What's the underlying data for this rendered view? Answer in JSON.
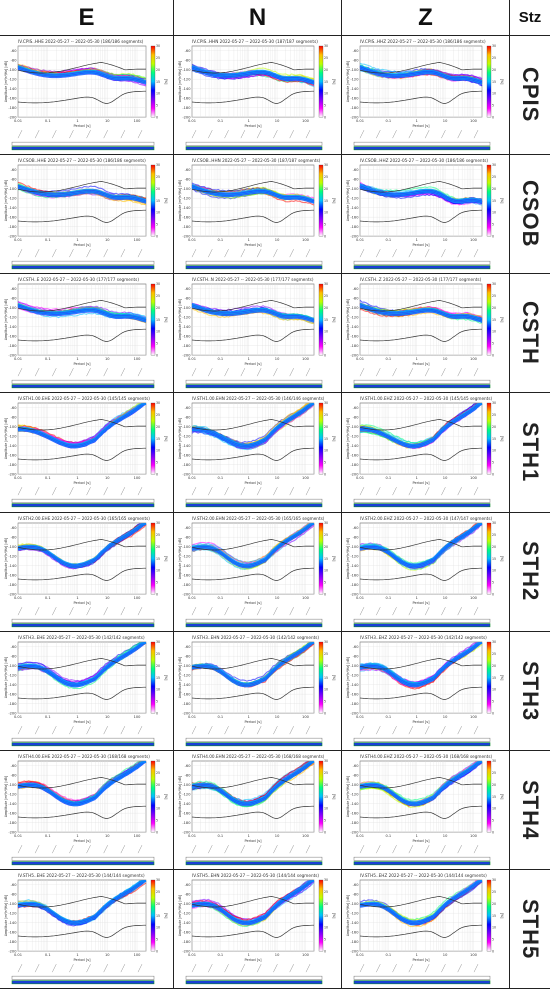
{
  "header": {
    "columns": [
      "E",
      "N",
      "Z"
    ],
    "stz_label": "Stz"
  },
  "stations": [
    "CPIS",
    "CSOB",
    "CSTH",
    "STH1",
    "STH2",
    "STH3",
    "STH4",
    "STH5"
  ],
  "panel_titles": [
    [
      "IV.CPIS..HHE 2022-05-27 -- 2022-05-30 (186/186 segments)",
      "IV.CPIS..HHN 2022-05-27 -- 2022-05-30 (187/187 segments)",
      "IV.CPIS..HHZ 2022-05-27 -- 2022-05-30 (186/186 segments)"
    ],
    [
      "IV.CSOB..HHE 2022-05-27 -- 2022-05-30 (186/186 segments)",
      "IV.CSOB..HHN 2022-05-27 -- 2022-05-30 (187/187 segments)",
      "IV.CSOB..HHZ 2022-05-27 -- 2022-05-30 (186/186 segments)"
    ],
    [
      "IV.CSTH..E 2022-05-27 -- 2022-05-30 (177/177 segments)",
      "IV.CSTH..N 2022-05-27 -- 2022-05-30 (177/177 segments)",
      "IV.CSTH..Z 2022-05-27 -- 2022-05-30 (177/177 segments)"
    ],
    [
      "IV.STH1.00.EHE 2022-05-27 -- 2022-05-30 (145/145 segments)",
      "IV.STH1.00.EHN 2022-05-27 -- 2022-05-30 (146/146 segments)",
      "IV.STH1.00.EHZ 2022-05-27 -- 2022-05-30 (145/145 segments)"
    ],
    [
      "IV.STH2.00.EHE 2022-05-27 -- 2022-05-30 (165/165 segments)",
      "IV.STH2.00.EHN 2022-05-27 -- 2022-05-30 (165/165 segments)",
      "IV.STH2.00.EHZ 2022-05-27 -- 2022-05-30 (147/147 segments)"
    ],
    [
      "IV.STH3..EHE 2022-05-27 -- 2022-05-30 (142/142 segments)",
      "IV.STH3..EHN 2022-05-27 -- 2022-05-30 (142/142 segments)",
      "IV.STH3..EHZ 2022-05-27 -- 2022-05-30 (142/142 segments)"
    ],
    [
      "IV.STH4.00.EHE 2022-05-27 -- 2022-05-30 (168/168 segments)",
      "IV.STH4.00.EHN 2022-05-27 -- 2022-05-30 (168/168 segments)",
      "IV.STH4.00.EHZ 2022-05-27 -- 2022-05-30 (168/168 segments)"
    ],
    [
      "IV.STH5..EHE 2022-05-27 -- 2022-05-30 (144/144 segments)",
      "IV.STH5..EHN 2022-05-27 -- 2022-05-30 (144/144 segments)",
      "IV.STH5..EHZ 2022-05-27 -- 2022-05-30 (144/144 segments)"
    ]
  ],
  "chart_data": {
    "type": "line",
    "description_axes": {
      "xlabel": "Period [s]",
      "ylabel": "Amplitude [m²/s⁴/Hz] [dB]",
      "x_ticks": [
        "0.01",
        "0.1",
        "1",
        "10",
        "100"
      ],
      "y_ticks": [
        "-60",
        "-80",
        "-100",
        "-120",
        "-140",
        "-160",
        "-180",
        "-200"
      ],
      "xlim": [
        0.01,
        200
      ],
      "ylim": [
        -200,
        -50
      ],
      "x_scale": "log",
      "colorbar_ticks": [
        "30",
        "25",
        "20",
        "15",
        "10",
        "5",
        "0"
      ],
      "colorbar_label": "[%]",
      "grid": true
    },
    "reference_models": [
      "NHNM",
      "NLNM"
    ],
    "colormap": [
      "#ff00ff",
      "#8000ff",
      "#0000ff",
      "#00c0ff",
      "#00ff80",
      "#c0ff00",
      "#ffc000",
      "#ff0000"
    ]
  }
}
